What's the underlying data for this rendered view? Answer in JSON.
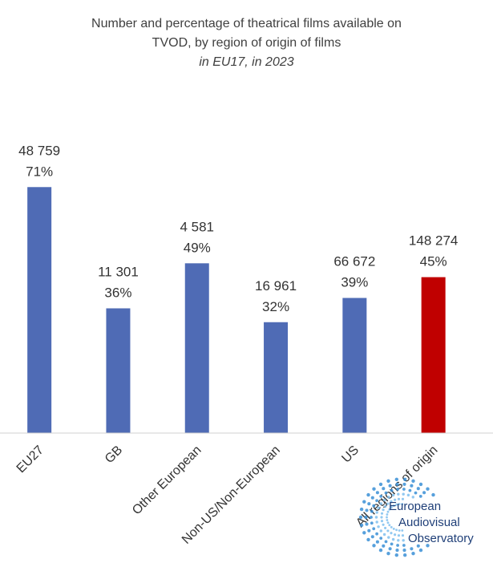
{
  "chart_data": {
    "type": "bar",
    "title": "Number and percentage of theatrical films available on TVOD, by region of origin of films",
    "title_lines": [
      "Number and percentage of theatrical films available on",
      "TVOD, by region of origin of films"
    ],
    "subtitle": "in EU17, in 2023",
    "categories": [
      "EU27",
      "GB",
      "Other European",
      "Non-US/Non-European",
      "US",
      "All regions of origin"
    ],
    "values": [
      71,
      36,
      49,
      32,
      39,
      45
    ],
    "counts": [
      "48 759",
      "11 301",
      "4 581",
      "16 961",
      "66 672",
      "148 274"
    ],
    "percent_labels": [
      "71%",
      "36%",
      "49%",
      "32%",
      "39%",
      "45%"
    ],
    "bar_colors": [
      "#4f6bb5",
      "#4f6bb5",
      "#4f6bb5",
      "#4f6bb5",
      "#4f6bb5",
      "#c00000"
    ],
    "ylim": [
      0,
      100
    ],
    "grid": false,
    "legend": "none",
    "xlabel": "",
    "ylabel": ""
  },
  "logo": {
    "lines": [
      "European",
      "Audiovisual",
      "Observatory"
    ],
    "color": "#1f3f78"
  }
}
